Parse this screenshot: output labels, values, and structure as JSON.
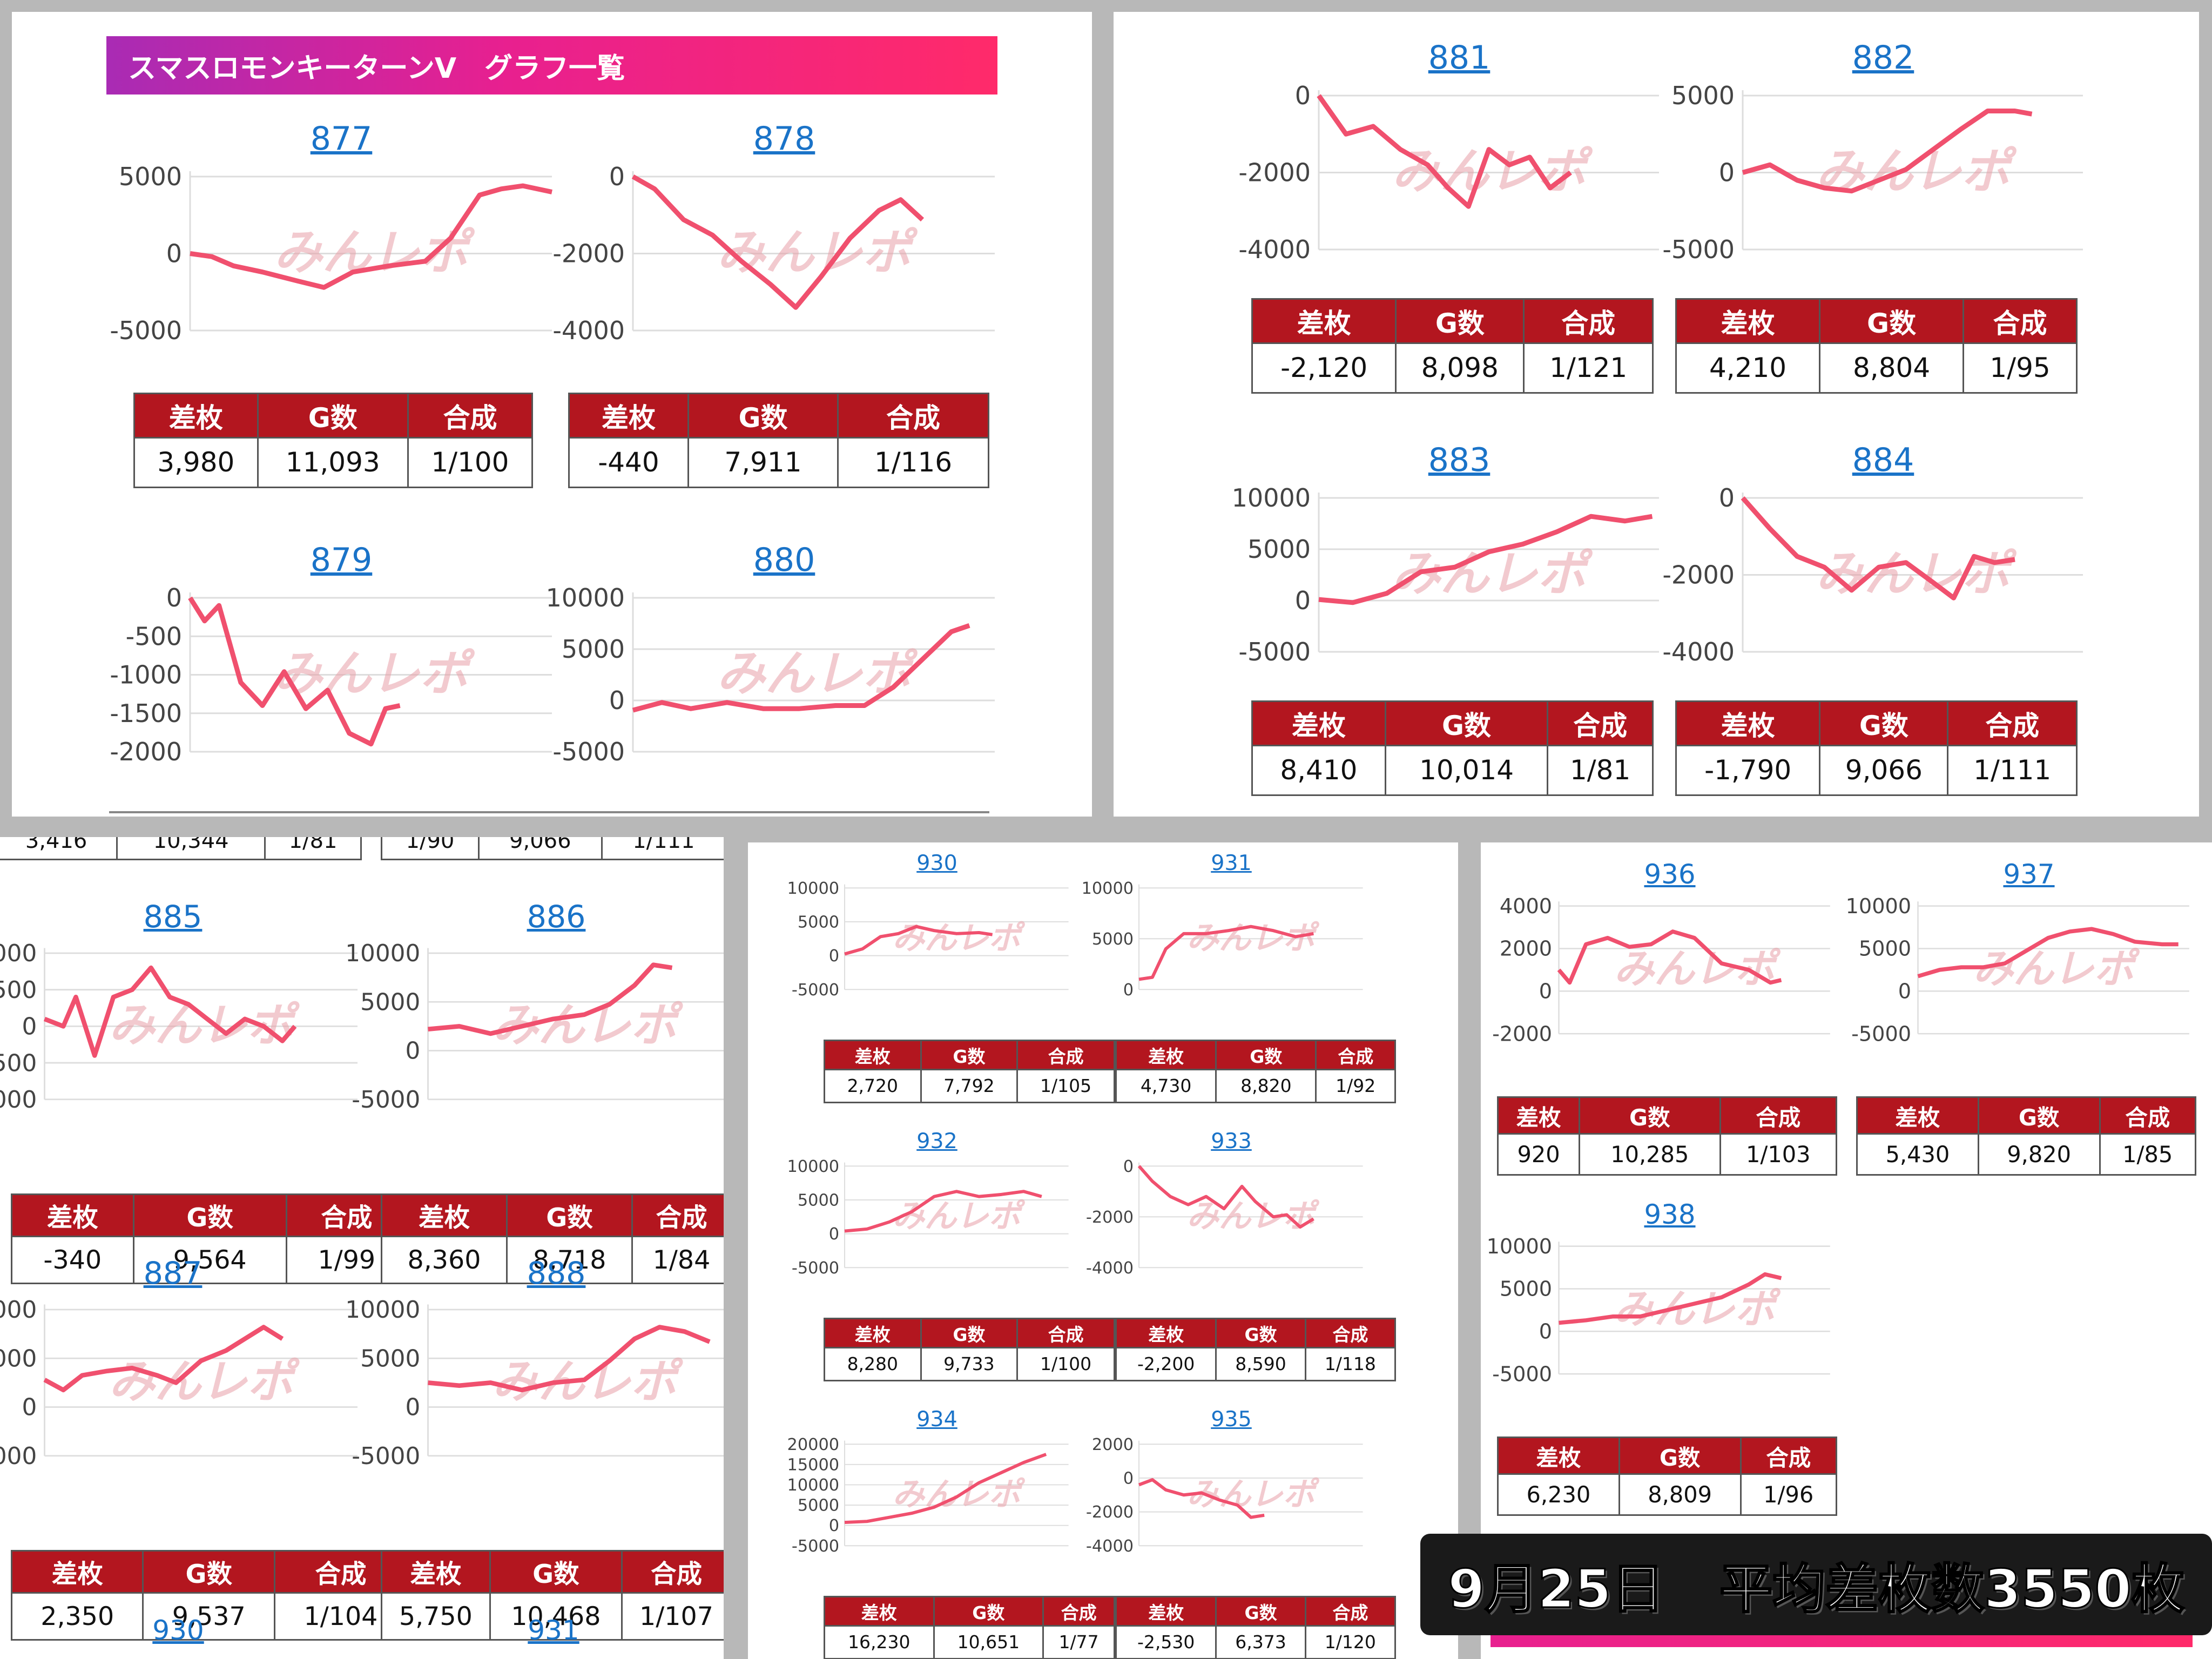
{
  "header": {
    "title": "スマスロモンキーターンV　グラフ一覧"
  },
  "table_headers": {
    "diff": "差枚",
    "games": "G数",
    "combined": "合成"
  },
  "banner": {
    "date": "9月25日",
    "avg_label": "平均差枚数3550枚"
  },
  "watermark": "みんレポ",
  "colors": {
    "line": "#f0506e",
    "table_header": "#b3161f",
    "link": "#1a73c8",
    "header_gradient": [
      "#a92bb4",
      "#ff2a6a"
    ]
  },
  "panel1": {
    "cards": [
      {
        "machine": "877",
        "diff": "3,980",
        "games": "11,093",
        "combined": "1/100",
        "ticks": [
          "5000",
          "0",
          "-5000"
        ]
      },
      {
        "machine": "878",
        "diff": "-440",
        "games": "7,911",
        "combined": "1/116",
        "ticks": [
          "0",
          "-2000",
          "-4000"
        ]
      },
      {
        "machine": "879",
        "ticks": [
          "0",
          "-500",
          "-1000",
          "-1500",
          "-2000"
        ]
      },
      {
        "machine": "880",
        "ticks": [
          "10000",
          "5000",
          "0",
          "-5000"
        ]
      }
    ]
  },
  "panel2": {
    "cards": [
      {
        "machine": "881",
        "diff": "-2,120",
        "games": "8,098",
        "combined": "1/121",
        "ticks": [
          "0",
          "-2000",
          "-4000"
        ]
      },
      {
        "machine": "882",
        "diff": "4,210",
        "games": "8,804",
        "combined": "1/95",
        "ticks": [
          "5000",
          "0",
          "-5000"
        ]
      },
      {
        "machine": "883",
        "diff": "8,410",
        "games": "10,014",
        "combined": "1/81",
        "ticks": [
          "10000",
          "5000",
          "0",
          "-5000"
        ]
      },
      {
        "machine": "884",
        "diff": "-1,790",
        "games": "9,066",
        "combined": "1/111",
        "ticks": [
          "0",
          "-2000",
          "-4000"
        ]
      }
    ]
  },
  "panel3": {
    "top_partial": [
      "3,416",
      "10,344",
      "1/81",
      "1/90",
      "9,066",
      "1/111"
    ],
    "cards": [
      {
        "machine": "885",
        "diff": "-340",
        "games": "9,564",
        "combined": "1/99",
        "ticks": [
          "000",
          "500",
          "0",
          "500",
          "000"
        ]
      },
      {
        "machine": "886",
        "diff": "8,360",
        "games": "8,718",
        "combined": "1/84",
        "ticks": [
          "10000",
          "5000",
          "0",
          "-5000"
        ]
      },
      {
        "machine": "887",
        "diff": "2,350",
        "games": "9,537",
        "combined": "1/104",
        "ticks": [
          "000",
          "000",
          "0",
          "000"
        ]
      },
      {
        "machine": "888",
        "diff": "5,750",
        "games": "10,468",
        "combined": "1/107",
        "ticks": [
          "10000",
          "5000",
          "0",
          "-5000"
        ]
      }
    ],
    "bottom_links": [
      "930",
      "931"
    ]
  },
  "panel4": {
    "cards": [
      {
        "machine": "930",
        "diff": "2,720",
        "games": "7,792",
        "combined": "1/105",
        "ticks": [
          "10000",
          "5000",
          "0",
          "-5000"
        ]
      },
      {
        "machine": "931",
        "diff": "4,730",
        "games": "8,820",
        "combined": "1/92",
        "ticks": [
          "10000",
          "5000",
          "0"
        ]
      },
      {
        "machine": "932",
        "diff": "8,280",
        "games": "9,733",
        "combined": "1/100",
        "ticks": [
          "10000",
          "5000",
          "0",
          "-5000"
        ]
      },
      {
        "machine": "933",
        "diff": "-2,200",
        "games": "8,590",
        "combined": "1/118",
        "ticks": [
          "0",
          "-2000",
          "-4000"
        ]
      },
      {
        "machine": "934",
        "diff": "16,230",
        "games": "10,651",
        "combined": "1/77",
        "ticks": [
          "20000",
          "15000",
          "10000",
          "5000",
          "0",
          "-5000"
        ]
      },
      {
        "machine": "935",
        "diff": "-2,530",
        "games": "6,373",
        "combined": "1/120",
        "ticks": [
          "2000",
          "0",
          "-2000",
          "-4000"
        ]
      }
    ]
  },
  "panel5": {
    "cards": [
      {
        "machine": "936",
        "diff": "920",
        "games": "10,285",
        "combined": "1/103",
        "ticks": [
          "4000",
          "2000",
          "0",
          "-2000"
        ]
      },
      {
        "machine": "937",
        "diff": "5,430",
        "games": "9,820",
        "combined": "1/85",
        "ticks": [
          "10000",
          "5000",
          "0",
          "-5000"
        ]
      },
      {
        "machine": "938",
        "diff": "6,230",
        "games": "8,809",
        "combined": "1/96",
        "ticks": [
          "10000",
          "5000",
          "0",
          "-5000"
        ]
      }
    ]
  }
}
